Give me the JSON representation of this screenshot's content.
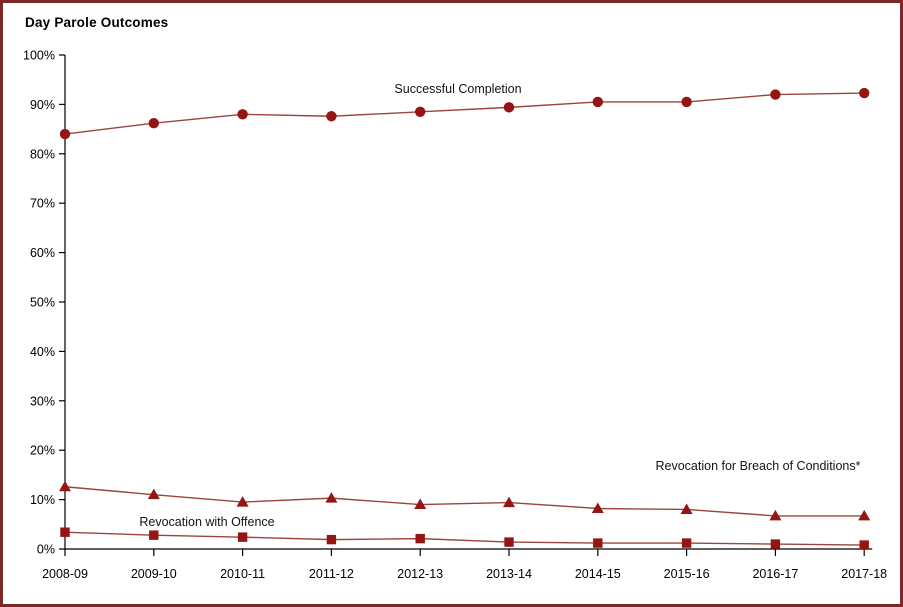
{
  "title": "Day Parole Outcomes",
  "colors": {
    "frame_border": "#7d2828",
    "series_line": "#9a453f",
    "series_marker": "#951414",
    "axis": "#000000",
    "text": "#000000"
  },
  "chart_data": {
    "type": "line",
    "title": "Day Parole Outcomes",
    "categories": [
      "2008-09",
      "2009-10",
      "2010-11",
      "2011-12",
      "2012-13",
      "2013-14",
      "2014-15",
      "2015-16",
      "2016-17",
      "2017-18"
    ],
    "series": [
      {
        "name": "Successful Completion",
        "marker": "circle",
        "values": [
          84.0,
          86.2,
          88.0,
          87.6,
          88.5,
          89.4,
          90.5,
          90.5,
          92.0,
          92.3
        ]
      },
      {
        "name": "Revocation for Breach of Conditions*",
        "marker": "triangle",
        "values": [
          12.6,
          11.0,
          9.5,
          10.3,
          9.0,
          9.4,
          8.2,
          8.0,
          6.7,
          6.7
        ]
      },
      {
        "name": "Revocation with Offence",
        "marker": "square",
        "values": [
          3.4,
          2.8,
          2.4,
          1.9,
          2.1,
          1.4,
          1.2,
          1.2,
          1.0,
          0.8
        ]
      }
    ],
    "xlabel": "",
    "ylabel": "",
    "ylim": [
      0,
      100
    ],
    "ytick_step": 10,
    "ytick_labels": [
      "0%",
      "10%",
      "20%",
      "30%",
      "40%",
      "50%",
      "60%",
      "70%",
      "80%",
      "90%",
      "100%"
    ],
    "grid": false,
    "legend": "inline annotations next to each series"
  }
}
